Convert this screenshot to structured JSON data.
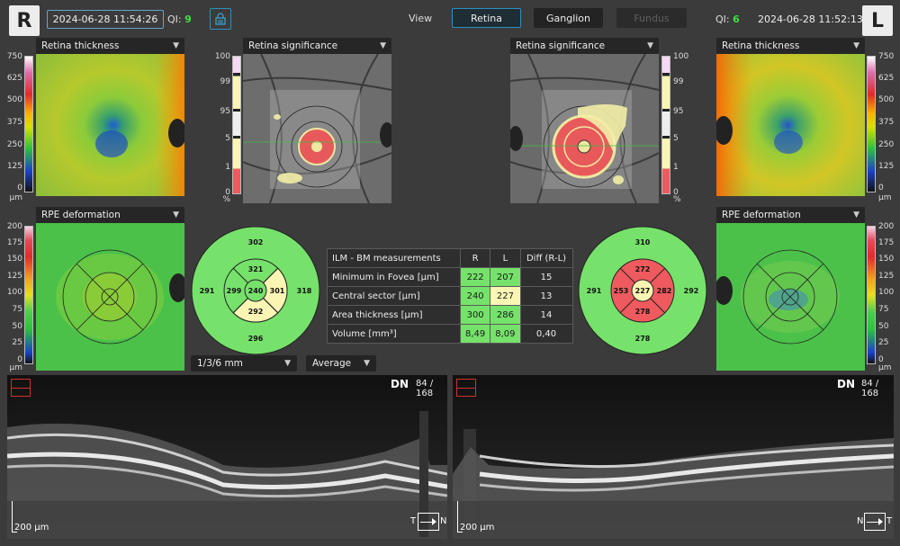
{
  "right_eye": {
    "letter": "R",
    "date": "2024-06-28 11:54:26",
    "qi_label": "QI:",
    "qi_value": "9"
  },
  "left_eye": {
    "letter": "L",
    "date": "2024-06-28 11:52:13",
    "qi_label": "QI:",
    "qi_value": "6"
  },
  "view": {
    "label": "View",
    "tabs": [
      {
        "label": "Retina",
        "state": "active"
      },
      {
        "label": "Ganglion",
        "state": "normal"
      },
      {
        "label": "Fundus",
        "state": "disabled"
      }
    ]
  },
  "panels": {
    "retina_thickness": "Retina thickness",
    "retina_significance": "Retina significance",
    "rpe_deformation": "RPE deformation"
  },
  "thickness_scale": {
    "ticks": [
      "750",
      "625",
      "500",
      "375",
      "250",
      "125",
      "0"
    ],
    "unit": "µm"
  },
  "significance_scale": {
    "ticks": [
      "100",
      "99",
      "95",
      "5",
      "1",
      "0"
    ],
    "unit": "%"
  },
  "rpe_scale": {
    "ticks": [
      "200",
      "175",
      "150",
      "125",
      "100",
      "75",
      "50",
      "25",
      "0"
    ],
    "unit": "µm"
  },
  "etdrs_right": {
    "outer_top": "302",
    "outer_left": "291",
    "outer_right": "318",
    "outer_bottom": "296",
    "inner_top": "321",
    "inner_left": "299",
    "inner_right": "301",
    "inner_bottom": "292",
    "center": "240"
  },
  "etdrs_left": {
    "outer_top": "310",
    "outer_left": "291",
    "outer_right": "292",
    "outer_bottom": "278",
    "inner_top": "272",
    "inner_left": "253",
    "inner_right": "282",
    "inner_bottom": "278",
    "center": "227"
  },
  "colors": {
    "normal_green": "#76e26b",
    "borderline_yellow": "#fbf5b4",
    "abnormal_red": "#ee5a5e",
    "accent_blue": "#2f8fbf"
  },
  "measurements": {
    "headers": [
      "ILM - BM measurements",
      "R",
      "L",
      "Diff (R-L)"
    ],
    "rows": [
      {
        "label": "Minimum in Fovea [µm]",
        "r": "222",
        "l": "207",
        "diff": "15"
      },
      {
        "label": "Central sector [µm]",
        "r": "240",
        "l": "227",
        "diff": "13"
      },
      {
        "label": "Area thickness [µm]",
        "r": "300",
        "l": "286",
        "diff": "14"
      },
      {
        "label": "Volume [mm³]",
        "r": "8,49",
        "l": "8,09",
        "diff": "0,40"
      }
    ]
  },
  "grid_select": {
    "value": "1/3/6 mm"
  },
  "average_select": {
    "value": "Average"
  },
  "oct_right": {
    "label": "DN",
    "slice": "84 / 168",
    "scale": "200 µm",
    "orient_left": "T",
    "orient_right": "N"
  },
  "oct_left": {
    "label": "DN",
    "slice": "84 / 168",
    "scale": "200 µm",
    "orient_left": "N",
    "orient_right": "T"
  }
}
